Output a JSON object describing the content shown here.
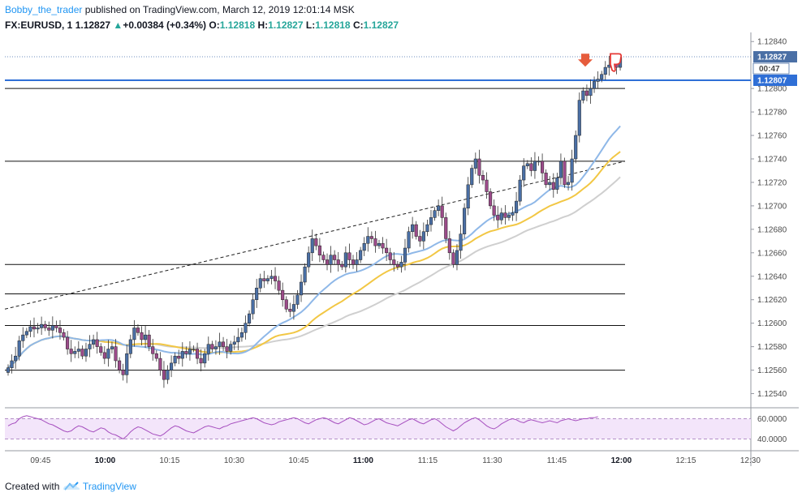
{
  "header": {
    "author": "Bobby_the_trader",
    "published_text": "published on TradingView.com, March 12, 2019 12:01:14 MSK",
    "symbol": "FX:EURUSD, 1",
    "last": "1.12827",
    "change_arrow": "▲",
    "change": "+0.00384 (+0.34%)",
    "o_label": "O:",
    "o_value": "1.12818",
    "h_label": "H:",
    "h_value": "1.12827",
    "l_label": "L:",
    "l_value": "1.12818",
    "c_label": "C:",
    "c_value": "1.12827"
  },
  "footer": {
    "created_with": "Created with",
    "brand": "TradingView",
    "logo_icon": "tradingview-cloud-icon"
  },
  "price_labels": {
    "last_price": "1.12827",
    "countdown": "00:47",
    "line_price": "1.12807"
  },
  "colors": {
    "bull": "#4a6fa5",
    "bear": "#9c4b8a",
    "ma_fast": "#8fb8e8",
    "ma_mid": "#f2c744",
    "ma_slow": "#cfcfcf",
    "rsi": "#a64fbf",
    "rsi_band": "#f3e5fa",
    "blue_line": "#2f6fd6",
    "arrow_down": "#e65c3c",
    "thumbs_down": "#e53935"
  },
  "icons": {
    "down_arrow": "down-arrow-icon",
    "thumbs_down": "thumbs-down-icon"
  },
  "chart_data": [
    {
      "type": "candlestick",
      "x_ticks": [
        "09:45",
        "10:00",
        "10:15",
        "10:30",
        "10:45",
        "11:00",
        "11:15",
        "11:30",
        "11:45",
        "12:00",
        "12:15",
        "12:30"
      ],
      "x_ticks_bold": [
        "10:00",
        "11:00",
        "12:00"
      ],
      "y_ticks": [
        "1.12540",
        "1.12560",
        "1.12580",
        "1.12600",
        "1.12620",
        "1.12640",
        "1.12660",
        "1.12680",
        "1.12700",
        "1.12720",
        "1.12740",
        "1.12760",
        "1.12780",
        "1.12800",
        "1.12840"
      ],
      "ylim": [
        1.1253,
        1.12845
      ],
      "bar_minutes": 1,
      "start_time": "09:42",
      "closes": [
        1.12562,
        1.12568,
        1.12572,
        1.12585,
        1.1259,
        1.12593,
        1.12597,
        1.12595,
        1.12596,
        1.12599,
        1.12596,
        1.12594,
        1.12598,
        1.12596,
        1.12592,
        1.12588,
        1.12578,
        1.12574,
        1.12576,
        1.12578,
        1.12572,
        1.12578,
        1.12582,
        1.12586,
        1.1258,
        1.12575,
        1.1257,
        1.12578,
        1.1258,
        1.12568,
        1.1256,
        1.12556,
        1.12574,
        1.12586,
        1.12596,
        1.12592,
        1.12586,
        1.1259,
        1.1258,
        1.12574,
        1.1257,
        1.1256,
        1.12552,
        1.1256,
        1.12566,
        1.12572,
        1.1257,
        1.12576,
        1.12574,
        1.12578,
        1.12578,
        1.1257,
        1.12566,
        1.12574,
        1.12582,
        1.12578,
        1.1258,
        1.12584,
        1.1258,
        1.12576,
        1.12582,
        1.12584,
        1.12588,
        1.12592,
        1.126,
        1.12608,
        1.1262,
        1.1263,
        1.12638,
        1.12636,
        1.12638,
        1.1264,
        1.12636,
        1.12628,
        1.1262,
        1.12612,
        1.1261,
        1.12616,
        1.12624,
        1.12635,
        1.12648,
        1.1266,
        1.12672,
        1.12666,
        1.12658,
        1.12654,
        1.1265,
        1.12658,
        1.12654,
        1.1265,
        1.12648,
        1.1266,
        1.12654,
        1.1265,
        1.12654,
        1.12662,
        1.12668,
        1.12674,
        1.12672,
        1.12666,
        1.12668,
        1.12664,
        1.1266,
        1.12654,
        1.1265,
        1.12648,
        1.12652,
        1.12664,
        1.12678,
        1.12684,
        1.12674,
        1.1267,
        1.12678,
        1.12684,
        1.1269,
        1.12696,
        1.127,
        1.1269,
        1.12672,
        1.1266,
        1.1265,
        1.12662,
        1.12676,
        1.12698,
        1.12718,
        1.12732,
        1.1274,
        1.12726,
        1.12722,
        1.12712,
        1.127,
        1.12692,
        1.12688,
        1.12694,
        1.1269,
        1.12692,
        1.12694,
        1.12704,
        1.12722,
        1.12734,
        1.12736,
        1.1273,
        1.12738,
        1.12738,
        1.12728,
        1.12718,
        1.1272,
        1.12714,
        1.12724,
        1.12738,
        1.12718,
        1.1272,
        1.1274,
        1.1276,
        1.1279,
        1.12798,
        1.12794,
        1.128,
        1.12806,
        1.12808,
        1.12812,
        1.12818,
        1.1282,
        1.12822,
        1.12818,
        1.12827
      ]
    },
    {
      "type": "line",
      "name": "RSI",
      "y_ticks": [
        "60.0000",
        "40.0000"
      ],
      "ylim": [
        30,
        70
      ],
      "values": [
        53,
        55,
        56,
        60,
        62,
        63,
        62,
        61,
        60,
        59,
        57,
        55,
        54,
        52,
        50,
        48,
        47,
        48,
        51,
        53,
        52,
        50,
        48,
        47,
        49,
        51,
        50,
        47,
        45,
        44,
        42,
        40,
        43,
        47,
        50,
        52,
        51,
        49,
        47,
        45,
        44,
        43,
        45,
        48,
        51,
        53,
        52,
        50,
        48,
        47,
        46,
        48,
        50,
        52,
        53,
        52,
        51,
        50,
        52,
        53,
        55,
        56,
        57,
        58,
        59,
        60,
        61,
        60,
        58,
        56,
        55,
        54,
        55,
        57,
        58,
        59,
        60,
        61,
        60,
        58,
        56,
        55,
        57,
        59,
        60,
        61,
        60,
        58,
        56,
        55,
        57,
        59,
        61,
        60,
        58,
        56,
        54,
        55,
        57,
        59,
        60,
        58,
        56,
        55,
        54,
        53,
        55,
        57,
        59,
        60,
        58,
        56,
        55,
        57,
        59,
        60,
        58,
        55,
        52,
        50,
        48,
        50,
        53,
        56,
        58,
        60,
        61,
        59,
        56,
        53,
        51,
        50,
        52,
        55,
        57,
        59,
        60,
        59,
        57,
        56,
        58,
        59,
        58,
        57,
        56,
        57,
        58,
        57,
        56,
        58,
        59,
        60,
        59,
        58,
        59,
        60,
        60,
        61,
        61,
        62
      ]
    }
  ]
}
